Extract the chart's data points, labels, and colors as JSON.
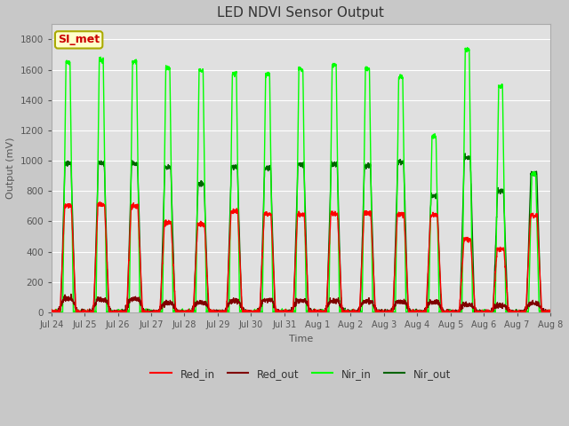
{
  "title": "LED NDVI Sensor Output",
  "xlabel": "Time",
  "ylabel": "Output (mV)",
  "ylim": [
    0,
    1900
  ],
  "yticks": [
    0,
    200,
    400,
    600,
    800,
    1000,
    1200,
    1400,
    1600,
    1800
  ],
  "x_labels": [
    "Jul 24",
    "Jul 25",
    "Jul 26",
    "Jul 27",
    "Jul 28",
    "Jul 29",
    "Jul 30",
    "Jul 31",
    "Aug 1",
    "Aug 2",
    "Aug 3",
    "Aug 4",
    "Aug 5",
    "Aug 6",
    "Aug 7",
    "Aug 8"
  ],
  "annotation_text": "SI_met",
  "annotation_color": "#cc0000",
  "annotation_bg": "#ffffcc",
  "fig_bg": "#c8c8c8",
  "plot_bg": "#e0e0e0",
  "grid_color": "#ffffff",
  "colors": {
    "Red_in": "#ff0000",
    "Red_out": "#800000",
    "Nir_in": "#00ff00",
    "Nir_out": "#006400"
  },
  "num_cycles": 15,
  "red_in_peaks": [
    700,
    710,
    700,
    590,
    580,
    665,
    650,
    645,
    650,
    655,
    645,
    640,
    480,
    420,
    640
  ],
  "red_out_peaks": [
    90,
    85,
    88,
    60,
    65,
    75,
    80,
    78,
    75,
    72,
    70,
    68,
    50,
    45,
    60
  ],
  "nir_in_peaks": [
    1650,
    1665,
    1655,
    1610,
    1595,
    1575,
    1570,
    1600,
    1630,
    1610,
    1555,
    1160,
    1730,
    1490,
    910
  ],
  "nir_out_peaks": [
    985,
    985,
    980,
    955,
    845,
    960,
    950,
    975,
    975,
    965,
    990,
    770,
    1020,
    800,
    915
  ]
}
